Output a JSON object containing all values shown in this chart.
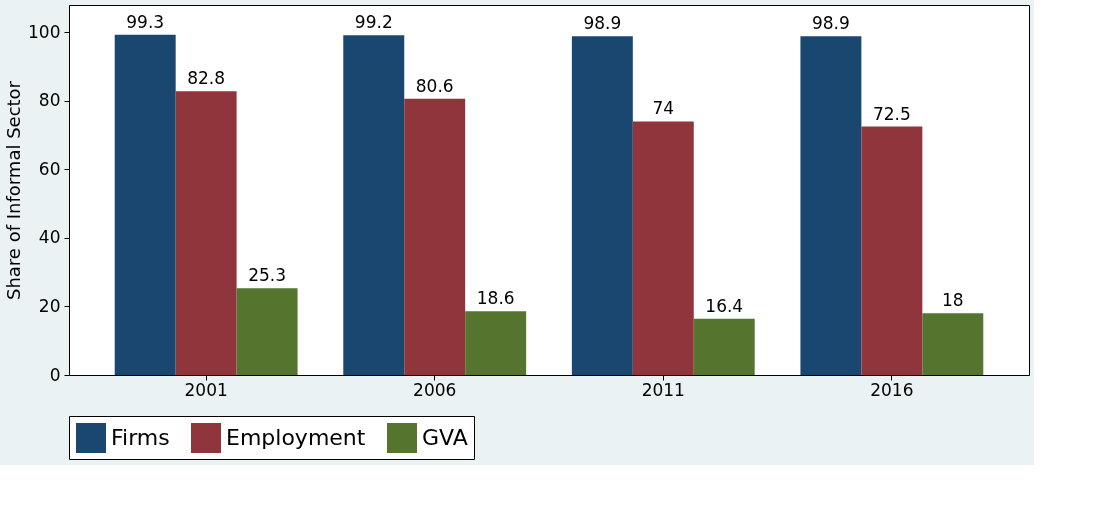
{
  "chart_data": {
    "type": "bar",
    "ylabel": "Share of Informal Sector",
    "categories": [
      "2001",
      "2006",
      "2011",
      "2016"
    ],
    "series": [
      {
        "name": "Firms",
        "color": "#1a476f",
        "values": [
          99.3,
          99.2,
          98.9,
          98.9
        ]
      },
      {
        "name": "Employment",
        "color": "#90353b",
        "values": [
          82.8,
          80.6,
          74,
          72.5
        ]
      },
      {
        "name": "GVA",
        "color": "#55752f",
        "values": [
          25.3,
          18.6,
          16.4,
          18
        ]
      }
    ],
    "ylim": [
      0,
      108
    ],
    "yticks": [
      0,
      20,
      40,
      60,
      80,
      100
    ],
    "grid": false,
    "legend": "bottom",
    "data_labels": true
  }
}
